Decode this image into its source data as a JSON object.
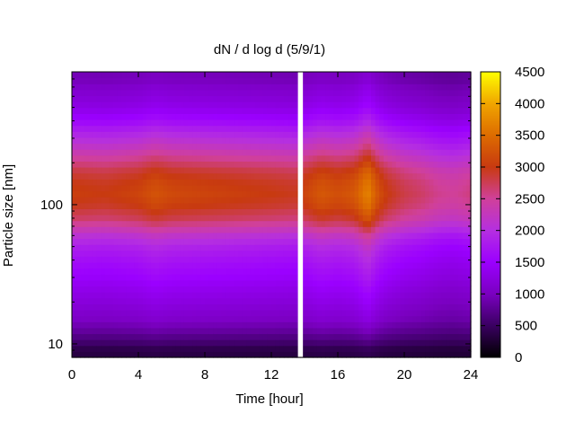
{
  "chart_data": {
    "type": "heatmap",
    "title": "dN / d log d (5/9/1)",
    "xlabel": "Time [hour]",
    "ylabel": "Particle size [nm]",
    "xlim": [
      0,
      24
    ],
    "ylim": [
      8,
      900
    ],
    "y_scale": "log",
    "x_ticks": [
      0,
      4,
      8,
      12,
      16,
      20,
      24
    ],
    "y_ticks": [
      10,
      100
    ],
    "colorbar": {
      "ticks": [
        0,
        500,
        1000,
        1500,
        2000,
        2500,
        3000,
        3500,
        4000,
        4500
      ],
      "range": [
        0,
        4500
      ],
      "palette": [
        "#000000",
        "#3a0061",
        "#7a00c0",
        "#9b00ff",
        "#b52fe0",
        "#d0409a",
        "#c83a10",
        "#dd6c00",
        "#f0a500",
        "#ffff00"
      ]
    },
    "data_gap": {
      "x": [
        13.6,
        13.9
      ]
    },
    "profile": {
      "diameter_nm": [
        9,
        10,
        12,
        15,
        20,
        25,
        30,
        40,
        50,
        60,
        70,
        80,
        100,
        120,
        150,
        180,
        200,
        250,
        300,
        400,
        500,
        600,
        700,
        800
      ],
      "relative_level": [
        0.08,
        0.12,
        0.18,
        0.24,
        0.28,
        0.31,
        0.34,
        0.38,
        0.42,
        0.48,
        0.56,
        0.62,
        0.68,
        0.7,
        0.68,
        0.64,
        0.6,
        0.52,
        0.46,
        0.36,
        0.3,
        0.27,
        0.25,
        0.22
      ]
    },
    "time_amplitude": {
      "hour": [
        0,
        2,
        4,
        5,
        6,
        8,
        10,
        12,
        13.5,
        14,
        15,
        16,
        17,
        17.8,
        18.5,
        19,
        20,
        21,
        22,
        23,
        24
      ],
      "concentration_peak": [
        3050,
        3000,
        3100,
        3250,
        3150,
        3100,
        3050,
        3000,
        2950,
        3100,
        3300,
        3200,
        3300,
        3700,
        3200,
        3000,
        2800,
        2700,
        2550,
        2500,
        2600
      ]
    }
  }
}
